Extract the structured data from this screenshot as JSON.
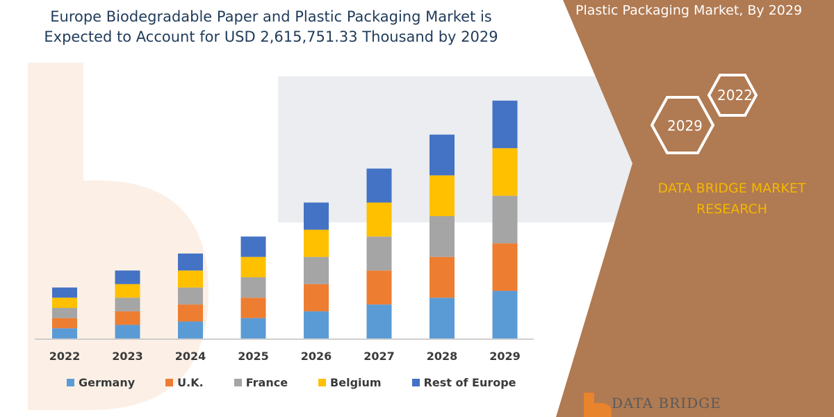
{
  "header": {
    "title_line1": "Europe Biodegradable Paper and Plastic Packaging Market is",
    "title_line2": "Expected to Account for USD 2,615,751.33 Thousand by 2029"
  },
  "panel": {
    "title": "Plastic Packaging Market, By 2029",
    "hex_front_label": "2029",
    "hex_back_label": "2022",
    "brand_line1": "DATA BRIDGE MARKET",
    "brand_line2": "RESEARCH",
    "footer_logo": "DATA BRIDGE",
    "colors": {
      "panel": "#b07a52",
      "brand_text": "#f5b800"
    }
  },
  "chart_data": {
    "type": "bar",
    "stacked": true,
    "categories": [
      "2022",
      "2023",
      "2024",
      "2025",
      "2026",
      "2027",
      "2028",
      "2029"
    ],
    "series": [
      {
        "name": "Germany",
        "color": "#5b9bd5",
        "values": [
          15,
          20,
          25,
          30,
          40,
          50,
          60,
          70
        ]
      },
      {
        "name": "U.K.",
        "color": "#ed7d31",
        "values": [
          15,
          20,
          25,
          30,
          40,
          50,
          60,
          70
        ]
      },
      {
        "name": "France",
        "color": "#a5a5a5",
        "values": [
          15,
          20,
          25,
          30,
          40,
          50,
          60,
          70
        ]
      },
      {
        "name": "Belgium",
        "color": "#ffc000",
        "values": [
          15,
          20,
          25,
          30,
          40,
          50,
          60,
          70
        ]
      },
      {
        "name": "Rest of Europe",
        "color": "#4472c4",
        "values": [
          15,
          20,
          25,
          30,
          40,
          50,
          60,
          70
        ]
      }
    ],
    "ylim": [
      0,
      360
    ],
    "grid": false,
    "legend": "bottom"
  }
}
